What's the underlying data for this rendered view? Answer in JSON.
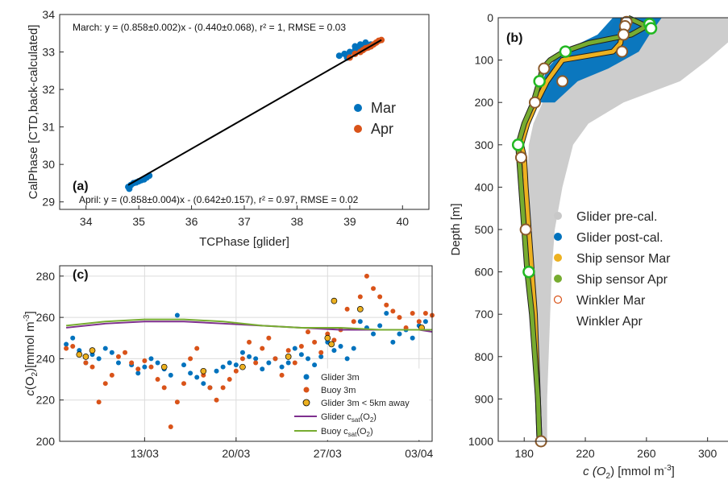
{
  "chart_data": [
    {
      "panel": "(a)",
      "type": "scatter",
      "xlabel": "TCPhase [glider]",
      "ylabel": "CalPhase [CTD,back-calculated]",
      "xlim": [
        33.5,
        40.5
      ],
      "ylim": [
        28.8,
        34
      ],
      "xticks": [
        34,
        35,
        36,
        37,
        38,
        39,
        40
      ],
      "yticks": [
        29,
        30,
        31,
        32,
        33,
        34
      ],
      "grid": false,
      "legend_position": "right",
      "annotations": [
        "March: y = (0.858±0.002)x - (0.440±0.068), r² = 1, RMSE = 0.03",
        "April: y = (0.858±0.004)x - (0.642±0.157), r² = 0.97, RMSE = 0.02"
      ],
      "series": [
        {
          "name": "Mar",
          "color": "#0072BD",
          "points": [
            [
              34.8,
              29.4
            ],
            [
              34.85,
              29.45
            ],
            [
              34.9,
              29.5
            ],
            [
              34.95,
              29.52
            ],
            [
              35.0,
              29.55
            ],
            [
              35.05,
              29.58
            ],
            [
              35.1,
              29.6
            ],
            [
              35.15,
              29.65
            ],
            [
              35.2,
              29.7
            ],
            [
              34.82,
              29.35
            ],
            [
              38.8,
              32.9
            ],
            [
              38.9,
              32.95
            ],
            [
              39.0,
              33.0
            ],
            [
              39.1,
              33.05
            ],
            [
              39.2,
              33.1
            ],
            [
              39.3,
              33.15
            ],
            [
              39.4,
              33.2
            ],
            [
              39.1,
              33.15
            ],
            [
              39.2,
              33.2
            ],
            [
              39.3,
              33.25
            ],
            [
              38.95,
              32.85
            ]
          ]
        },
        {
          "name": "Apr",
          "color": "#D95319",
          "points": [
            [
              39.0,
              32.85
            ],
            [
              39.1,
              32.95
            ],
            [
              39.2,
              33.0
            ],
            [
              39.3,
              33.1
            ],
            [
              39.4,
              33.15
            ],
            [
              39.5,
              33.25
            ],
            [
              39.6,
              33.32
            ],
            [
              39.55,
              33.3
            ],
            [
              39.45,
              33.2
            ],
            [
              39.35,
              33.12
            ],
            [
              39.25,
              33.05
            ]
          ]
        }
      ],
      "fit_line": {
        "color": "#000000",
        "x": [
          34.8,
          39.6
        ],
        "y": [
          29.45,
          33.32
        ]
      }
    },
    {
      "panel": "(c)",
      "type": "scatter",
      "ylabel_parts": [
        "c",
        "(O",
        "2",
        ")[mmol m",
        "-3",
        "]"
      ],
      "ylim": [
        200,
        285
      ],
      "yticks": [
        200,
        220,
        240,
        260,
        280
      ],
      "xlim": [
        6.5,
        35
      ],
      "xtick_positions": [
        13,
        20,
        27,
        34
      ],
      "xtick_labels": [
        "13/03",
        "20/03",
        "27/03",
        "03/04"
      ],
      "grid": true,
      "legend_position": "bottom-right",
      "legend": [
        {
          "name": "Glider 3m",
          "color": "#0072BD",
          "kind": "dot"
        },
        {
          "name": "Buoy 3m",
          "color": "#D95319",
          "kind": "dot"
        },
        {
          "name": "Glider 3m < 5km away",
          "color": "#EDB120",
          "kind": "ring"
        },
        {
          "name_parts": [
            "Glider c",
            "sat",
            "(O",
            "2",
            ")"
          ],
          "color": "#7E2F8E",
          "kind": "line"
        },
        {
          "name_parts": [
            "Buoy c",
            "sat",
            "(O",
            "2",
            ")"
          ],
          "color": "#77AC30",
          "kind": "line"
        }
      ],
      "series": [
        {
          "name": "Glider 3m",
          "color": "#0072BD",
          "points": [
            [
              7,
              247
            ],
            [
              7.5,
              250
            ],
            [
              8,
              244
            ],
            [
              8.5,
              238
            ],
            [
              9,
              242
            ],
            [
              9.5,
              240
            ],
            [
              10,
              245
            ],
            [
              10.5,
              243
            ],
            [
              11,
              238
            ],
            [
              12,
              237
            ],
            [
              12.5,
              233
            ],
            [
              13,
              236
            ],
            [
              13.5,
              240
            ],
            [
              14,
              238
            ],
            [
              14.5,
              235
            ],
            [
              15,
              232
            ],
            [
              15.5,
              261
            ],
            [
              16,
              237
            ],
            [
              16.5,
              233
            ],
            [
              17,
              231
            ],
            [
              17.5,
              228
            ],
            [
              18,
              226
            ],
            [
              18.5,
              234
            ],
            [
              19,
              236
            ],
            [
              19.5,
              238
            ],
            [
              20,
              237
            ],
            [
              20.5,
              243
            ],
            [
              21,
              241
            ],
            [
              21.5,
              240
            ],
            [
              22,
              235
            ],
            [
              22.5,
              238
            ],
            [
              23,
              240
            ],
            [
              23.5,
              236
            ],
            [
              24,
              238
            ],
            [
              24.5,
              245
            ],
            [
              25,
              242
            ],
            [
              25.5,
              240
            ],
            [
              26,
              237
            ],
            [
              26.5,
              241
            ],
            [
              27,
              248
            ],
            [
              27.5,
              244
            ],
            [
              28,
              246
            ],
            [
              28.5,
              240
            ],
            [
              29,
              245
            ],
            [
              29.5,
              258
            ],
            [
              30,
              255
            ],
            [
              30.5,
              252
            ],
            [
              31,
              256
            ],
            [
              31.5,
              262
            ],
            [
              32,
              248
            ],
            [
              32.5,
              252
            ],
            [
              33,
              254
            ],
            [
              33.5,
              250
            ],
            [
              34,
              256
            ],
            [
              34.5,
              258
            ]
          ]
        },
        {
          "name": "Buoy 3m",
          "color": "#D95319",
          "points": [
            [
              7,
              245
            ],
            [
              7.5,
              246
            ],
            [
              8,
              242
            ],
            [
              8.5,
              238
            ],
            [
              9,
              236
            ],
            [
              9.5,
              219
            ],
            [
              10,
              228
            ],
            [
              10.5,
              232
            ],
            [
              11,
              241
            ],
            [
              11.5,
              243
            ],
            [
              12,
              238
            ],
            [
              12.5,
              235
            ],
            [
              13,
              239
            ],
            [
              13.5,
              236
            ],
            [
              14,
              230
            ],
            [
              14.5,
              226
            ],
            [
              15,
              207
            ],
            [
              15.5,
              219
            ],
            [
              16,
              228
            ],
            [
              16.5,
              240
            ],
            [
              17,
              245
            ],
            [
              17.5,
              232
            ],
            [
              18,
              226
            ],
            [
              18.5,
              220
            ],
            [
              19,
              226
            ],
            [
              19.5,
              230
            ],
            [
              20,
              234
            ],
            [
              20.5,
              240
            ],
            [
              21,
              248
            ],
            [
              21.5,
              238
            ],
            [
              22,
              245
            ],
            [
              22.5,
              250
            ],
            [
              23,
              240
            ],
            [
              23.5,
              232
            ],
            [
              24,
              244
            ],
            [
              24.5,
              238
            ],
            [
              25,
              246
            ],
            [
              25.5,
              253
            ],
            [
              26,
              248
            ],
            [
              26.5,
              243
            ],
            [
              27,
              252
            ],
            [
              27.5,
              249
            ],
            [
              28,
              254
            ],
            [
              28.5,
              264
            ],
            [
              29,
              258
            ],
            [
              29.5,
              270
            ],
            [
              30,
              280
            ],
            [
              30.5,
              274
            ],
            [
              31,
              270
            ],
            [
              31.5,
              266
            ],
            [
              32,
              263
            ],
            [
              32.5,
              260
            ],
            [
              33,
              255
            ],
            [
              33.5,
              262
            ],
            [
              34,
              258
            ],
            [
              34.5,
              262
            ],
            [
              35,
              261
            ]
          ]
        },
        {
          "name": "Glider 3m < 5km away",
          "color": "#EDB120",
          "points": [
            [
              8,
              242
            ],
            [
              8.5,
              241
            ],
            [
              9,
              244
            ],
            [
              14.5,
              236
            ],
            [
              17.5,
              234
            ],
            [
              20.5,
              236
            ],
            [
              24,
              241
            ],
            [
              27,
              250
            ],
            [
              27.3,
              247
            ],
            [
              27.5,
              268
            ],
            [
              29.5,
              264
            ],
            [
              34.2,
              255
            ]
          ]
        },
        {
          "name": "Glider csat(O2)",
          "color": "#7E2F8E",
          "type": "line",
          "x": [
            7,
            10,
            13,
            16,
            19,
            22,
            25,
            28,
            31,
            34,
            35
          ],
          "y": [
            255,
            257,
            258,
            258,
            257,
            256,
            255,
            254,
            254,
            254,
            253
          ]
        },
        {
          "name": "Buoy csat(O2)",
          "color": "#77AC30",
          "type": "line",
          "x": [
            7,
            10,
            13,
            16,
            19,
            22,
            25,
            28,
            31,
            34,
            35
          ],
          "y": [
            256,
            258,
            259,
            259,
            258,
            256,
            255,
            255,
            254,
            254,
            254
          ]
        }
      ]
    },
    {
      "panel": "(b)",
      "type": "line",
      "ylabel": "Depth [m]",
      "xlabel_parts": [
        "c (O",
        "2",
        ") [mmol m",
        "-3",
        "]"
      ],
      "xlim": [
        163,
        316
      ],
      "xticks": [
        180,
        220,
        260,
        300
      ],
      "ylim": [
        1000,
        0
      ],
      "yticks": [
        0,
        100,
        200,
        300,
        400,
        500,
        600,
        700,
        800,
        900,
        1000
      ],
      "y_reversed": true,
      "grid": false,
      "legend_position": "center-right",
      "legend": [
        {
          "name": "Glider pre-cal.",
          "color": "#C8C8C8",
          "kind": "dot"
        },
        {
          "name": "Glider post-cal.",
          "color": "#0072BD",
          "kind": "dot"
        },
        {
          "name": "Ship sensor Mar",
          "color": "#EDB120",
          "kind": "dot"
        },
        {
          "name": "Ship sensor Apr",
          "color": "#77AC30",
          "kind": "dot"
        },
        {
          "name": "Winkler Mar",
          "color": "#D95319",
          "kind": "ring"
        },
        {
          "name": "Winkler Apr",
          "color": "#77AC30",
          "kind": "ring"
        }
      ],
      "series": [
        {
          "name": "Glider pre-cal.",
          "color": "#C8C8C8",
          "type": "band",
          "depth": [
            0,
            50,
            100,
            150,
            200,
            250,
            300,
            400,
            500,
            600,
            700,
            800,
            900,
            1000
          ],
          "left": [
            240,
            232,
            212,
            200,
            192,
            186,
            183,
            182,
            183,
            184,
            185,
            186,
            187,
            188
          ],
          "right": [
            316,
            316,
            300,
            282,
            245,
            222,
            212,
            205,
            200,
            198,
            197,
            196,
            195,
            195
          ]
        },
        {
          "name": "Glider post-cal.",
          "color": "#0072BD",
          "type": "band",
          "depth": [
            0,
            40,
            80,
            120,
            150,
            200
          ],
          "left": [
            238,
            228,
            205,
            195,
            192,
            188
          ],
          "right": [
            270,
            262,
            255,
            235,
            215,
            200
          ]
        },
        {
          "name": "Ship sensor Mar",
          "color": "#EDB120",
          "type": "line",
          "depth": [
            0,
            30,
            60,
            80,
            100,
            150,
            200,
            250,
            300,
            330,
            400,
            500,
            600,
            700,
            800,
            900,
            1000
          ],
          "x": [
            245,
            244,
            243,
            238,
            205,
            195,
            188,
            182,
            178,
            180,
            181,
            183,
            185,
            187,
            188,
            189,
            190
          ]
        },
        {
          "name": "Ship sensor Apr",
          "color": "#77AC30",
          "type": "line",
          "depth": [
            0,
            20,
            40,
            60,
            80,
            100,
            120,
            150,
            200,
            250,
            300,
            350,
            400,
            500,
            600,
            700,
            800,
            900,
            1000
          ],
          "x": [
            248,
            260,
            250,
            222,
            206,
            197,
            192,
            190,
            186,
            180,
            176,
            177,
            178,
            180,
            182,
            185,
            187,
            189,
            190
          ]
        },
        {
          "name": "Winkler Mar",
          "color": "#D95319",
          "type": "points",
          "depth": [
            10,
            20,
            40,
            80,
            120,
            150,
            200,
            330,
            500,
            1000
          ],
          "x": [
            247,
            246,
            245,
            244,
            193,
            205,
            187,
            178,
            181,
            191
          ]
        },
        {
          "name": "Winkler Apr",
          "color": "#77AC30",
          "type": "points",
          "depth": [
            15,
            25,
            80,
            150,
            300,
            600
          ],
          "x": [
            262,
            263,
            207,
            190,
            176,
            183
          ]
        }
      ]
    }
  ]
}
